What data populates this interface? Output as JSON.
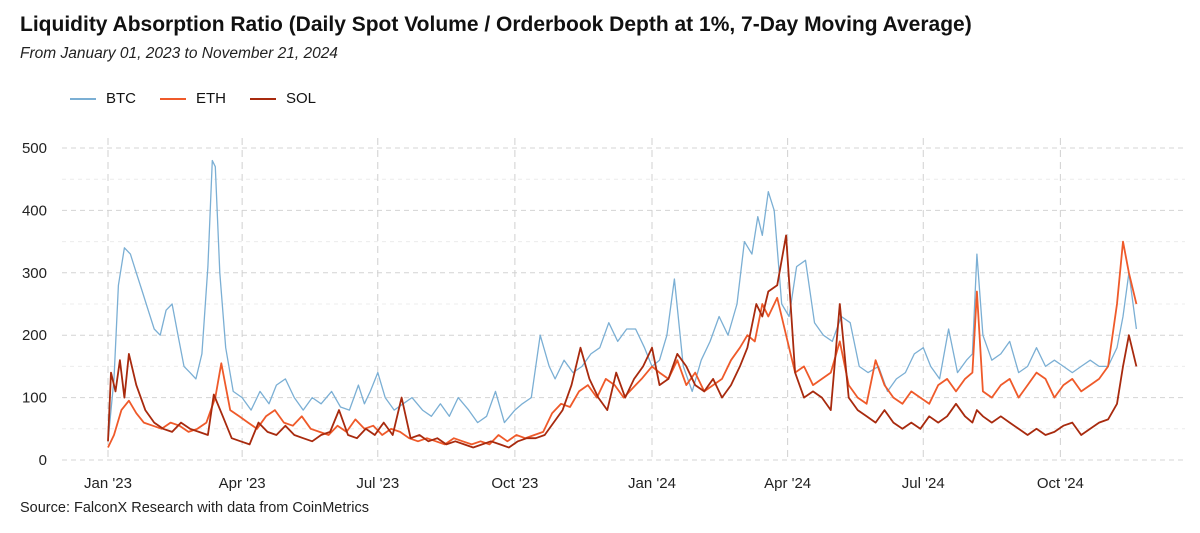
{
  "title": "Liquidity Absorption Ratio (Daily Spot Volume / Orderbook Depth at 1%, 7-Day Moving Average)",
  "subtitle": "From January 01, 2023 to November 21, 2024",
  "source": "Source: FalconX Research with data from CoinMetrics",
  "colors": {
    "BTC": "#7bafd4",
    "ETH": "#ef5a2a",
    "SOL": "#a82a0e"
  },
  "chart_data": {
    "type": "line",
    "title": "Liquidity Absorption Ratio (Daily Spot Volume / Orderbook Depth at 1%, 7-Day Moving Average)",
    "xlabel": "",
    "ylabel": "",
    "x_start": "2023-01-01",
    "x_end": "2024-11-21",
    "x_ticks": [
      {
        "label": "Jan '23",
        "date": "2023-01-01"
      },
      {
        "label": "Apr '23",
        "date": "2023-04-01"
      },
      {
        "label": "Jul '23",
        "date": "2023-07-01"
      },
      {
        "label": "Oct '23",
        "date": "2023-10-01"
      },
      {
        "label": "Jan '24",
        "date": "2024-01-01"
      },
      {
        "label": "Apr '24",
        "date": "2024-04-01"
      },
      {
        "label": "Jul '24",
        "date": "2024-07-01"
      },
      {
        "label": "Oct '24",
        "date": "2024-10-01"
      }
    ],
    "y_ticks": [
      0,
      100,
      200,
      300,
      400,
      500
    ],
    "ylim": [
      0,
      500
    ],
    "grid": true,
    "legend_position": "top-left",
    "series": [
      {
        "name": "BTC",
        "x": [
          "2023-01-01",
          "2023-01-05",
          "2023-01-08",
          "2023-01-12",
          "2023-01-16",
          "2023-01-20",
          "2023-01-24",
          "2023-01-28",
          "2023-02-01",
          "2023-02-05",
          "2023-02-09",
          "2023-02-13",
          "2023-02-17",
          "2023-02-21",
          "2023-02-25",
          "2023-03-01",
          "2023-03-05",
          "2023-03-09",
          "2023-03-12",
          "2023-03-14",
          "2023-03-17",
          "2023-03-21",
          "2023-03-26",
          "2023-04-01",
          "2023-04-07",
          "2023-04-13",
          "2023-04-19",
          "2023-04-24",
          "2023-04-30",
          "2023-05-06",
          "2023-05-12",
          "2023-05-18",
          "2023-05-24",
          "2023-05-31",
          "2023-06-06",
          "2023-06-12",
          "2023-06-18",
          "2023-06-22",
          "2023-06-26",
          "2023-07-01",
          "2023-07-06",
          "2023-07-12",
          "2023-07-18",
          "2023-07-24",
          "2023-07-31",
          "2023-08-06",
          "2023-08-12",
          "2023-08-18",
          "2023-08-24",
          "2023-08-31",
          "2023-09-06",
          "2023-09-12",
          "2023-09-18",
          "2023-09-24",
          "2023-10-01",
          "2023-10-06",
          "2023-10-12",
          "2023-10-18",
          "2023-10-24",
          "2023-10-28",
          "2023-11-03",
          "2023-11-09",
          "2023-11-15",
          "2023-11-21",
          "2023-11-27",
          "2023-12-03",
          "2023-12-09",
          "2023-12-15",
          "2023-12-21",
          "2023-12-27",
          "2024-01-01",
          "2024-01-06",
          "2024-01-11",
          "2024-01-16",
          "2024-01-22",
          "2024-01-28",
          "2024-02-03",
          "2024-02-09",
          "2024-02-15",
          "2024-02-21",
          "2024-02-27",
          "2024-03-03",
          "2024-03-08",
          "2024-03-12",
          "2024-03-15",
          "2024-03-19",
          "2024-03-23",
          "2024-03-28",
          "2024-04-02",
          "2024-04-07",
          "2024-04-13",
          "2024-04-19",
          "2024-04-25",
          "2024-05-01",
          "2024-05-07",
          "2024-05-13",
          "2024-05-19",
          "2024-05-25",
          "2024-06-01",
          "2024-06-07",
          "2024-06-13",
          "2024-06-19",
          "2024-06-25",
          "2024-07-01",
          "2024-07-06",
          "2024-07-12",
          "2024-07-18",
          "2024-07-24",
          "2024-07-30",
          "2024-08-03",
          "2024-08-06",
          "2024-08-10",
          "2024-08-16",
          "2024-08-22",
          "2024-08-28",
          "2024-09-03",
          "2024-09-09",
          "2024-09-15",
          "2024-09-21",
          "2024-09-27",
          "2024-10-03",
          "2024-10-09",
          "2024-10-15",
          "2024-10-21",
          "2024-10-27",
          "2024-11-02",
          "2024-11-08",
          "2024-11-12",
          "2024-11-16",
          "2024-11-21"
        ],
        "values": [
          30,
          130,
          280,
          340,
          330,
          300,
          270,
          240,
          210,
          200,
          240,
          250,
          200,
          150,
          140,
          130,
          170,
          310,
          480,
          470,
          300,
          180,
          110,
          100,
          80,
          110,
          90,
          120,
          130,
          100,
          80,
          100,
          90,
          110,
          85,
          80,
          120,
          90,
          110,
          140,
          100,
          80,
          90,
          100,
          80,
          70,
          90,
          70,
          100,
          80,
          60,
          70,
          110,
          60,
          80,
          90,
          100,
          200,
          150,
          130,
          160,
          140,
          150,
          170,
          180,
          220,
          190,
          210,
          210,
          180,
          150,
          160,
          200,
          290,
          150,
          110,
          160,
          190,
          230,
          200,
          250,
          350,
          330,
          390,
          360,
          430,
          400,
          250,
          230,
          310,
          320,
          220,
          200,
          190,
          230,
          220,
          150,
          140,
          150,
          110,
          130,
          140,
          170,
          180,
          150,
          130,
          210,
          140,
          160,
          170,
          330,
          200,
          160,
          170,
          190,
          140,
          150,
          180,
          150,
          160,
          150,
          140,
          150,
          160,
          150,
          150,
          180,
          230,
          300,
          210
        ]
      },
      {
        "name": "ETH",
        "x": [
          "2023-01-01",
          "2023-01-05",
          "2023-01-10",
          "2023-01-15",
          "2023-01-20",
          "2023-01-25",
          "2023-01-31",
          "2023-02-06",
          "2023-02-12",
          "2023-02-18",
          "2023-02-24",
          "2023-03-02",
          "2023-03-08",
          "2023-03-14",
          "2023-03-18",
          "2023-03-24",
          "2023-03-30",
          "2023-04-05",
          "2023-04-11",
          "2023-04-17",
          "2023-04-23",
          "2023-04-29",
          "2023-05-05",
          "2023-05-11",
          "2023-05-17",
          "2023-05-23",
          "2023-05-29",
          "2023-06-04",
          "2023-06-10",
          "2023-06-16",
          "2023-06-22",
          "2023-06-28",
          "2023-07-04",
          "2023-07-10",
          "2023-07-16",
          "2023-07-22",
          "2023-07-28",
          "2023-08-03",
          "2023-08-09",
          "2023-08-15",
          "2023-08-21",
          "2023-08-27",
          "2023-09-02",
          "2023-09-08",
          "2023-09-14",
          "2023-09-20",
          "2023-09-26",
          "2023-10-02",
          "2023-10-08",
          "2023-10-14",
          "2023-10-20",
          "2023-10-26",
          "2023-11-01",
          "2023-11-07",
          "2023-11-13",
          "2023-11-19",
          "2023-11-25",
          "2023-12-01",
          "2023-12-07",
          "2023-12-13",
          "2023-12-19",
          "2023-12-25",
          "2024-01-01",
          "2024-01-06",
          "2024-01-12",
          "2024-01-18",
          "2024-01-24",
          "2024-01-30",
          "2024-02-05",
          "2024-02-11",
          "2024-02-17",
          "2024-02-23",
          "2024-02-29",
          "2024-03-05",
          "2024-03-10",
          "2024-03-15",
          "2024-03-19",
          "2024-03-25",
          "2024-03-31",
          "2024-04-06",
          "2024-04-12",
          "2024-04-18",
          "2024-04-24",
          "2024-04-30",
          "2024-05-06",
          "2024-05-12",
          "2024-05-18",
          "2024-05-24",
          "2024-05-30",
          "2024-06-05",
          "2024-06-11",
          "2024-06-17",
          "2024-06-23",
          "2024-06-29",
          "2024-07-05",
          "2024-07-11",
          "2024-07-17",
          "2024-07-23",
          "2024-07-29",
          "2024-08-03",
          "2024-08-06",
          "2024-08-10",
          "2024-08-16",
          "2024-08-22",
          "2024-08-28",
          "2024-09-03",
          "2024-09-09",
          "2024-09-15",
          "2024-09-21",
          "2024-09-27",
          "2024-10-03",
          "2024-10-09",
          "2024-10-15",
          "2024-10-21",
          "2024-10-27",
          "2024-11-02",
          "2024-11-08",
          "2024-11-12",
          "2024-11-16",
          "2024-11-21"
        ],
        "values": [
          20,
          40,
          80,
          95,
          75,
          60,
          55,
          50,
          60,
          55,
          45,
          50,
          60,
          100,
          155,
          80,
          70,
          60,
          50,
          70,
          80,
          60,
          55,
          70,
          50,
          45,
          40,
          55,
          45,
          65,
          50,
          55,
          40,
          50,
          45,
          35,
          30,
          35,
          30,
          25,
          35,
          30,
          25,
          30,
          25,
          40,
          30,
          40,
          35,
          40,
          45,
          75,
          90,
          85,
          110,
          120,
          100,
          130,
          120,
          100,
          115,
          130,
          150,
          140,
          130,
          160,
          120,
          140,
          110,
          120,
          130,
          160,
          180,
          200,
          190,
          250,
          230,
          260,
          200,
          140,
          150,
          120,
          130,
          140,
          190,
          120,
          100,
          90,
          160,
          120,
          100,
          90,
          110,
          100,
          90,
          120,
          130,
          110,
          130,
          140,
          270,
          110,
          100,
          120,
          130,
          100,
          120,
          140,
          130,
          100,
          120,
          130,
          110,
          120,
          130,
          150,
          250,
          350,
          300,
          250
        ]
      },
      {
        "name": "SOL",
        "x": [
          "2023-01-01",
          "2023-01-03",
          "2023-01-06",
          "2023-01-09",
          "2023-01-12",
          "2023-01-15",
          "2023-01-20",
          "2023-01-26",
          "2023-02-01",
          "2023-02-07",
          "2023-02-13",
          "2023-02-19",
          "2023-02-25",
          "2023-03-03",
          "2023-03-09",
          "2023-03-13",
          "2023-03-19",
          "2023-03-25",
          "2023-03-31",
          "2023-04-06",
          "2023-04-12",
          "2023-04-18",
          "2023-04-24",
          "2023-04-30",
          "2023-05-06",
          "2023-05-12",
          "2023-05-18",
          "2023-05-24",
          "2023-05-30",
          "2023-06-05",
          "2023-06-11",
          "2023-06-17",
          "2023-06-23",
          "2023-06-29",
          "2023-07-05",
          "2023-07-11",
          "2023-07-17",
          "2023-07-23",
          "2023-07-29",
          "2023-08-04",
          "2023-08-10",
          "2023-08-16",
          "2023-08-22",
          "2023-08-28",
          "2023-09-03",
          "2023-09-09",
          "2023-09-15",
          "2023-09-21",
          "2023-09-27",
          "2023-10-03",
          "2023-10-09",
          "2023-10-15",
          "2023-10-21",
          "2023-10-27",
          "2023-11-02",
          "2023-11-08",
          "2023-11-14",
          "2023-11-20",
          "2023-11-26",
          "2023-12-02",
          "2023-12-08",
          "2023-12-14",
          "2023-12-20",
          "2023-12-26",
          "2024-01-01",
          "2024-01-06",
          "2024-01-12",
          "2024-01-18",
          "2024-01-24",
          "2024-01-30",
          "2024-02-05",
          "2024-02-11",
          "2024-02-17",
          "2024-02-23",
          "2024-02-29",
          "2024-03-05",
          "2024-03-11",
          "2024-03-15",
          "2024-03-19",
          "2024-03-25",
          "2024-03-31",
          "2024-04-06",
          "2024-04-12",
          "2024-04-18",
          "2024-04-24",
          "2024-04-30",
          "2024-05-06",
          "2024-05-12",
          "2024-05-18",
          "2024-05-24",
          "2024-05-30",
          "2024-06-05",
          "2024-06-11",
          "2024-06-17",
          "2024-06-23",
          "2024-06-29",
          "2024-07-05",
          "2024-07-11",
          "2024-07-17",
          "2024-07-23",
          "2024-07-29",
          "2024-08-03",
          "2024-08-06",
          "2024-08-10",
          "2024-08-16",
          "2024-08-22",
          "2024-08-28",
          "2024-09-03",
          "2024-09-09",
          "2024-09-15",
          "2024-09-21",
          "2024-09-27",
          "2024-10-03",
          "2024-10-09",
          "2024-10-15",
          "2024-10-21",
          "2024-10-27",
          "2024-11-02",
          "2024-11-08",
          "2024-11-12",
          "2024-11-16",
          "2024-11-21"
        ],
        "values": [
          30,
          140,
          110,
          160,
          100,
          170,
          120,
          80,
          60,
          50,
          45,
          60,
          50,
          45,
          40,
          105,
          70,
          35,
          30,
          25,
          60,
          45,
          40,
          55,
          40,
          35,
          30,
          40,
          45,
          80,
          40,
          35,
          50,
          40,
          60,
          40,
          100,
          35,
          40,
          30,
          35,
          25,
          30,
          25,
          20,
          25,
          30,
          25,
          20,
          30,
          35,
          35,
          40,
          60,
          80,
          120,
          180,
          130,
          100,
          80,
          140,
          100,
          130,
          150,
          180,
          120,
          130,
          170,
          150,
          120,
          110,
          130,
          100,
          120,
          150,
          180,
          250,
          230,
          270,
          280,
          360,
          140,
          100,
          110,
          100,
          80,
          250,
          100,
          80,
          70,
          60,
          80,
          60,
          50,
          60,
          50,
          70,
          60,
          70,
          90,
          70,
          60,
          80,
          70,
          60,
          70,
          60,
          50,
          40,
          50,
          40,
          45,
          55,
          60,
          40,
          50,
          60,
          65,
          90,
          150,
          200,
          150
        ]
      }
    ]
  }
}
